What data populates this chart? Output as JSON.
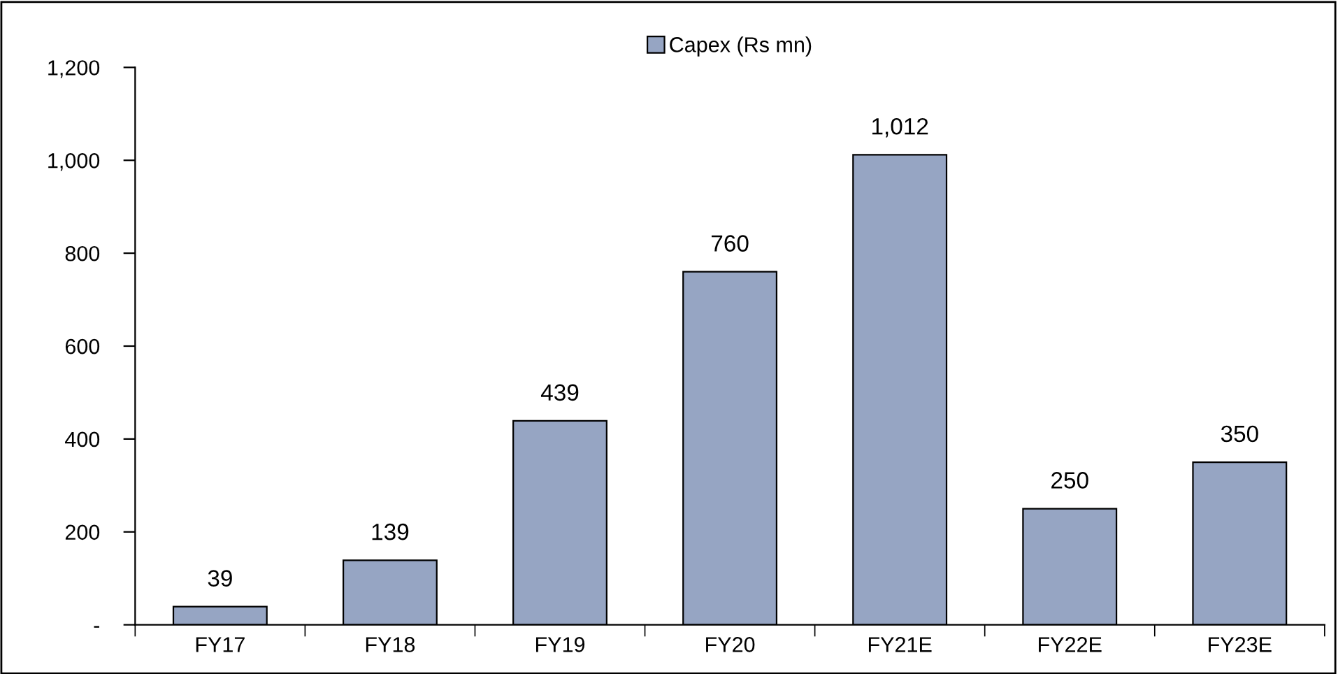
{
  "chart_data": {
    "type": "bar",
    "categories": [
      "FY17",
      "FY18",
      "FY19",
      "FY20",
      "FY21E",
      "FY22E",
      "FY23E"
    ],
    "series": [
      {
        "name": "Capex (Rs mn)",
        "color": "#96a5c3",
        "values": [
          39,
          139,
          439,
          760,
          1012,
          250,
          350
        ],
        "value_labels": [
          "39",
          "139",
          "439",
          "760",
          "1,012",
          "250",
          "350"
        ]
      }
    ],
    "ylim": [
      0,
      1200
    ],
    "yticks": [
      {
        "value": 0,
        "label": "-"
      },
      200,
      400,
      600,
      800,
      {
        "value": 1000,
        "label": "1,000"
      },
      {
        "value": 1200,
        "label": "1,200"
      }
    ],
    "legend": "top",
    "grid": false
  }
}
